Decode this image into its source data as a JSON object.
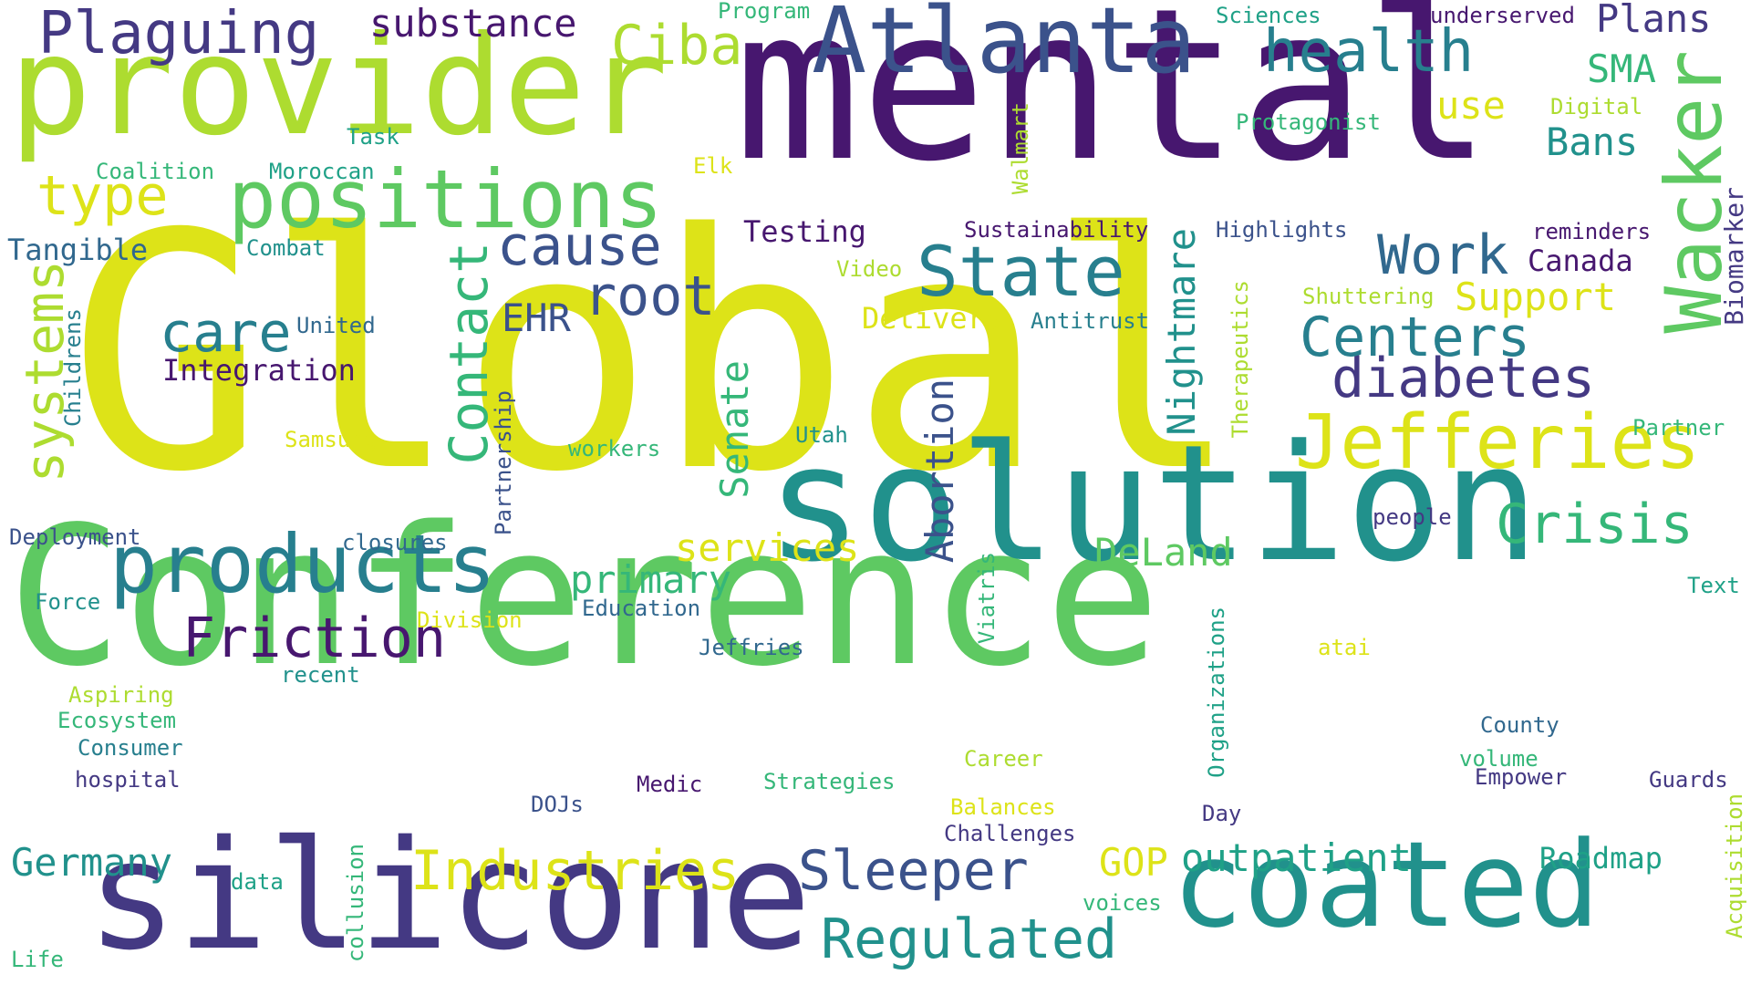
{
  "palette": {
    "d": "#47176f",
    "p": "#443983",
    "i": "#3b528b",
    "b": "#31688e",
    "t": "#277f8e",
    "c": "#21918c",
    "g": "#1fa187",
    "m": "#35b779",
    "l": "#5ec962",
    "y": "#addc30",
    "z": "#dde318"
  },
  "words": [
    {
      "text": "Global",
      "color": "z"
    },
    {
      "text": "Conference",
      "color": "l"
    },
    {
      "text": "mental",
      "color": "d"
    },
    {
      "text": "solution",
      "color": "c"
    },
    {
      "text": "provider",
      "color": "y"
    },
    {
      "text": "silicone",
      "color": "p"
    },
    {
      "text": "coated",
      "color": "c"
    },
    {
      "text": "Atlanta",
      "color": "i"
    },
    {
      "text": "positions",
      "color": "l"
    },
    {
      "text": "products",
      "color": "t"
    },
    {
      "text": "Wacker",
      "color": "l"
    },
    {
      "text": "Jefferies",
      "color": "z"
    },
    {
      "text": "Plaguing",
      "color": "p"
    },
    {
      "text": "health",
      "color": "t"
    },
    {
      "text": "State",
      "color": "t"
    },
    {
      "text": "Friction",
      "color": "d"
    },
    {
      "text": "Industries",
      "color": "z"
    },
    {
      "text": "Regulated",
      "color": "c"
    },
    {
      "text": "Sleeper",
      "color": "i"
    },
    {
      "text": "diabetes",
      "color": "p"
    },
    {
      "text": "Centers",
      "color": "t"
    },
    {
      "text": "Crisis",
      "color": "m"
    },
    {
      "text": "cause",
      "color": "i"
    },
    {
      "text": "root",
      "color": "i"
    },
    {
      "text": "Work",
      "color": "b"
    },
    {
      "text": "care",
      "color": "t"
    },
    {
      "text": "type",
      "color": "z"
    },
    {
      "text": "Ciba",
      "color": "y"
    },
    {
      "text": "systems",
      "color": "y"
    },
    {
      "text": "Contact",
      "color": "m"
    },
    {
      "text": "outpatient",
      "color": "g"
    },
    {
      "text": "Germany",
      "color": "c"
    },
    {
      "text": "primary",
      "color": "m"
    },
    {
      "text": "services",
      "color": "z"
    },
    {
      "text": "DeLand",
      "color": "l"
    },
    {
      "text": "substance",
      "color": "d"
    },
    {
      "text": "Support",
      "color": "z"
    },
    {
      "text": "Abortion",
      "color": "i"
    },
    {
      "text": "Nightmare",
      "color": "c"
    },
    {
      "text": "Senate",
      "color": "m"
    },
    {
      "text": "Bans",
      "color": "c"
    },
    {
      "text": "Plans",
      "color": "p"
    },
    {
      "text": "use",
      "color": "z"
    },
    {
      "text": "SMA",
      "color": "m"
    },
    {
      "text": "EHR",
      "color": "i"
    },
    {
      "text": "Canada",
      "color": "d"
    },
    {
      "text": "GOP",
      "color": "z"
    },
    {
      "text": "Roadmap",
      "color": "g"
    },
    {
      "text": "Integration",
      "color": "d"
    },
    {
      "text": "Testing",
      "color": "d"
    },
    {
      "text": "Tangible",
      "color": "b"
    },
    {
      "text": "Biomarker",
      "color": "p"
    },
    {
      "text": "Delivers",
      "color": "z"
    },
    {
      "text": "Highlights",
      "color": "i"
    },
    {
      "text": "Sustainability",
      "color": "d"
    },
    {
      "text": "Protagonist",
      "color": "m"
    },
    {
      "text": "Sciences",
      "color": "g"
    },
    {
      "text": "underserved",
      "color": "d"
    },
    {
      "text": "Program",
      "color": "m"
    },
    {
      "text": "Task",
      "color": "g"
    },
    {
      "text": "Coalition",
      "color": "m"
    },
    {
      "text": "Moroccan",
      "color": "g"
    },
    {
      "text": "Elk",
      "color": "z"
    },
    {
      "text": "Walmart",
      "color": "y"
    },
    {
      "text": "Digital",
      "color": "y"
    },
    {
      "text": "reminders",
      "color": "d"
    },
    {
      "text": "Combat",
      "color": "c"
    },
    {
      "text": "Video",
      "color": "y"
    },
    {
      "text": "Antitrust",
      "color": "t"
    },
    {
      "text": "Shuttering",
      "color": "y"
    },
    {
      "text": "Therapeutics",
      "color": "y"
    },
    {
      "text": "United",
      "color": "b"
    },
    {
      "text": "Childrens",
      "color": "t"
    },
    {
      "text": "Partnership",
      "color": "i"
    },
    {
      "text": "Samsung",
      "color": "z"
    },
    {
      "text": "workers",
      "color": "m"
    },
    {
      "text": "Utah",
      "color": "c"
    },
    {
      "text": "Partner",
      "color": "m"
    },
    {
      "text": "people",
      "color": "p"
    },
    {
      "text": "Deployment",
      "color": "i"
    },
    {
      "text": "closures",
      "color": "b"
    },
    {
      "text": "Viatris",
      "color": "m"
    },
    {
      "text": "Text",
      "color": "g"
    },
    {
      "text": "Force",
      "color": "c"
    },
    {
      "text": "Division",
      "color": "z"
    },
    {
      "text": "Education",
      "color": "b"
    },
    {
      "text": "Organizations",
      "color": "g"
    },
    {
      "text": "atai",
      "color": "z"
    },
    {
      "text": "Jeffries",
      "color": "b"
    },
    {
      "text": "recent",
      "color": "c"
    },
    {
      "text": "Aspiring",
      "color": "y"
    },
    {
      "text": "Ecosystem",
      "color": "m"
    },
    {
      "text": "Consumer",
      "color": "t"
    },
    {
      "text": "County",
      "color": "b"
    },
    {
      "text": "volume",
      "color": "m"
    },
    {
      "text": "hospital",
      "color": "p"
    },
    {
      "text": "Career",
      "color": "y"
    },
    {
      "text": "Medic",
      "color": "d"
    },
    {
      "text": "Strategies",
      "color": "m"
    },
    {
      "text": "Empower",
      "color": "p"
    },
    {
      "text": "Guards",
      "color": "p"
    },
    {
      "text": "DOJs",
      "color": "i"
    },
    {
      "text": "Balances",
      "color": "z"
    },
    {
      "text": "Day",
      "color": "p"
    },
    {
      "text": "Challenges",
      "color": "p"
    },
    {
      "text": "Acquisition",
      "color": "y"
    },
    {
      "text": "data",
      "color": "g"
    },
    {
      "text": "collusion",
      "color": "m"
    },
    {
      "text": "voices",
      "color": "m"
    },
    {
      "text": "Life",
      "color": "m"
    }
  ]
}
